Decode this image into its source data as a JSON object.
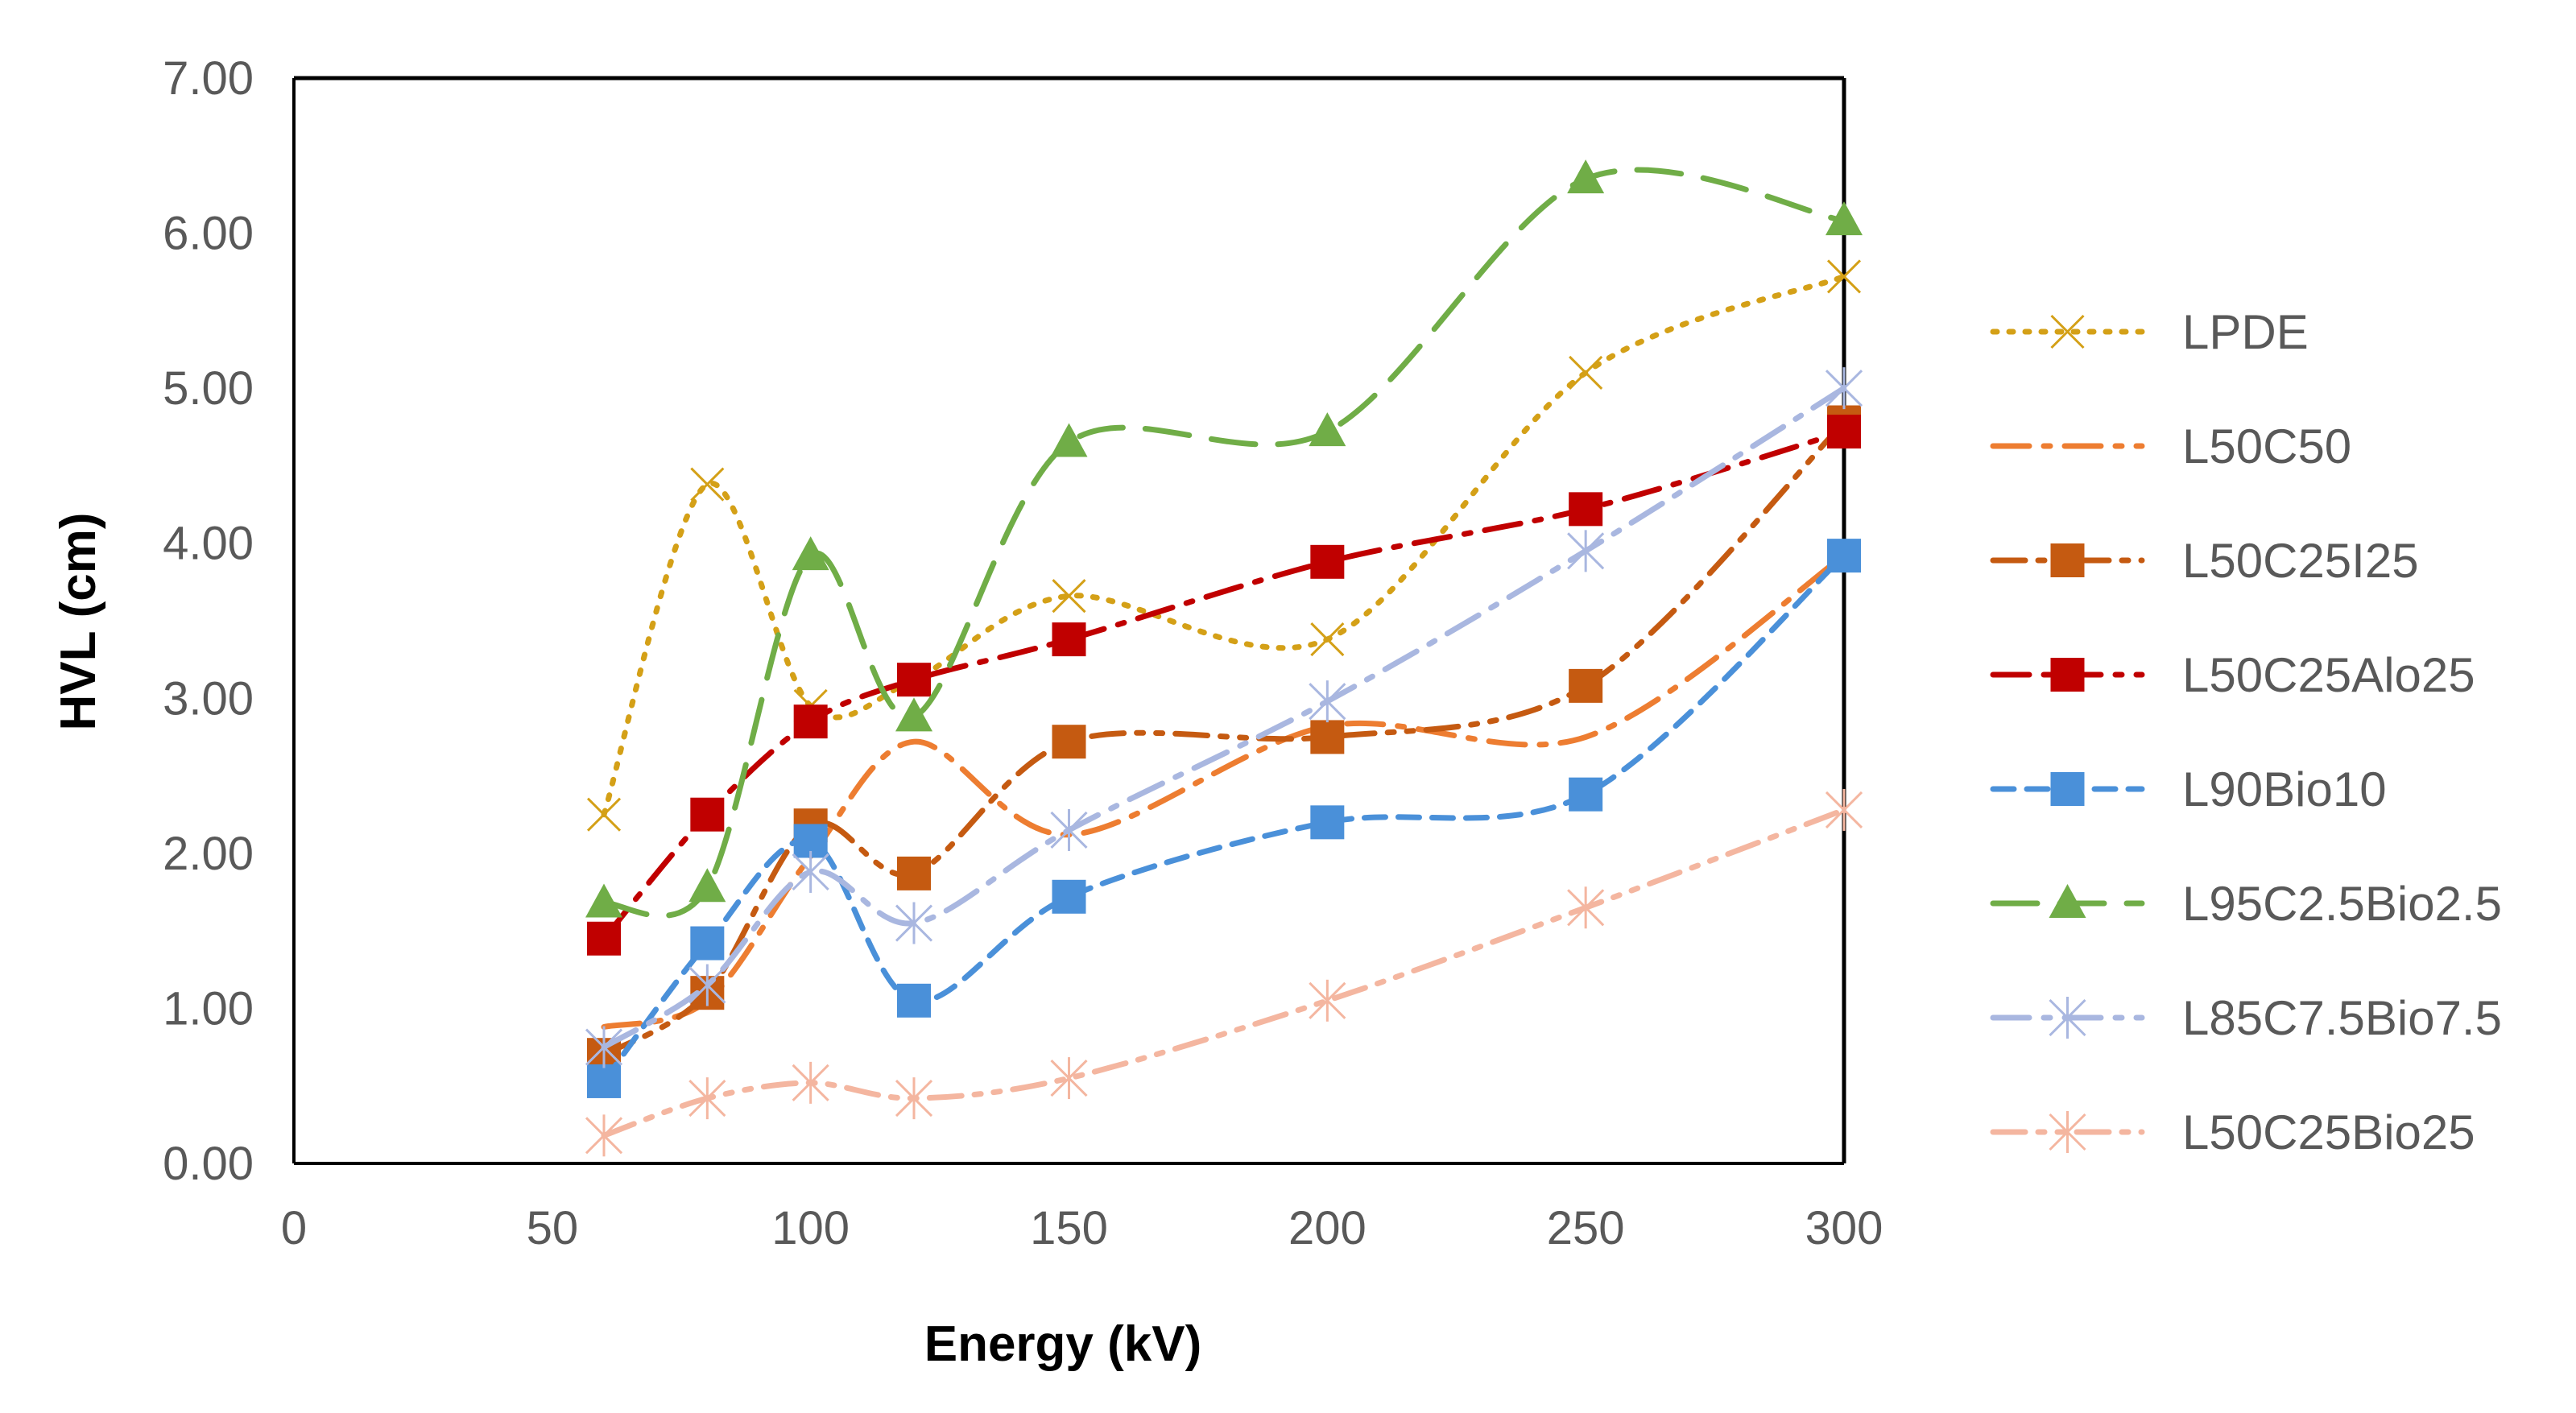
{
  "chart_data": {
    "type": "line",
    "title": "",
    "xlabel": "Energy (kV)",
    "ylabel": "HVL (cm)",
    "xlim": [
      0,
      300
    ],
    "ylim": [
      0,
      7
    ],
    "x_ticks": [
      "0",
      "50",
      "100",
      "150",
      "200",
      "250",
      "300"
    ],
    "y_ticks": [
      "0.00",
      "1.00",
      "2.00",
      "3.00",
      "4.00",
      "5.00",
      "6.00",
      "7.00"
    ],
    "x": [
      60,
      80,
      100,
      120,
      150,
      200,
      250,
      300
    ],
    "legend_position": "right",
    "grid": false,
    "series": [
      {
        "name": "LPDE",
        "color": "#D4A017",
        "dash": "dot",
        "marker": "x",
        "values": [
          2.25,
          4.38,
          2.95,
          3.12,
          3.66,
          3.38,
          5.1,
          5.72
        ]
      },
      {
        "name": "L50C50",
        "color": "#ED7D31",
        "dash": "dashdot",
        "marker": "none",
        "values": [
          0.88,
          1.05,
          1.98,
          2.72,
          2.12,
          2.82,
          2.75,
          3.92
        ]
      },
      {
        "name": "L50C25I25",
        "color": "#C55A11",
        "dash": "dashdotdot",
        "marker": "square",
        "values": [
          0.7,
          1.1,
          2.18,
          1.87,
          2.72,
          2.75,
          3.08,
          4.78
        ]
      },
      {
        "name": "L50C25Alo25",
        "color": "#C00000",
        "dash": "dashdot",
        "marker": "square",
        "values": [
          1.45,
          2.25,
          2.85,
          3.12,
          3.38,
          3.88,
          4.22,
          4.72
        ]
      },
      {
        "name": "L90Bio10",
        "color": "#4A90D9",
        "dash": "dash",
        "marker": "square",
        "values": [
          0.53,
          1.42,
          2.08,
          1.05,
          1.72,
          2.2,
          2.38,
          3.92
        ]
      },
      {
        "name": "L95C2.5Bio2.5",
        "color": "#70AD47",
        "dash": "longdash",
        "marker": "triangle",
        "values": [
          1.68,
          1.78,
          3.92,
          2.88,
          4.65,
          4.72,
          6.35,
          6.08
        ]
      },
      {
        "name": "L85C7.5Bio7.5",
        "color": "#A9B7E0",
        "dash": "dashdot",
        "marker": "asterisk",
        "values": [
          0.75,
          1.15,
          1.88,
          1.55,
          2.15,
          2.98,
          3.95,
          5.0
        ]
      },
      {
        "name": "L50C25Bio25",
        "color": "#F4B6A0",
        "dash": "dashdotdot",
        "marker": "asterisk",
        "values": [
          0.18,
          0.42,
          0.52,
          0.42,
          0.55,
          1.05,
          1.65,
          2.28
        ]
      }
    ]
  }
}
